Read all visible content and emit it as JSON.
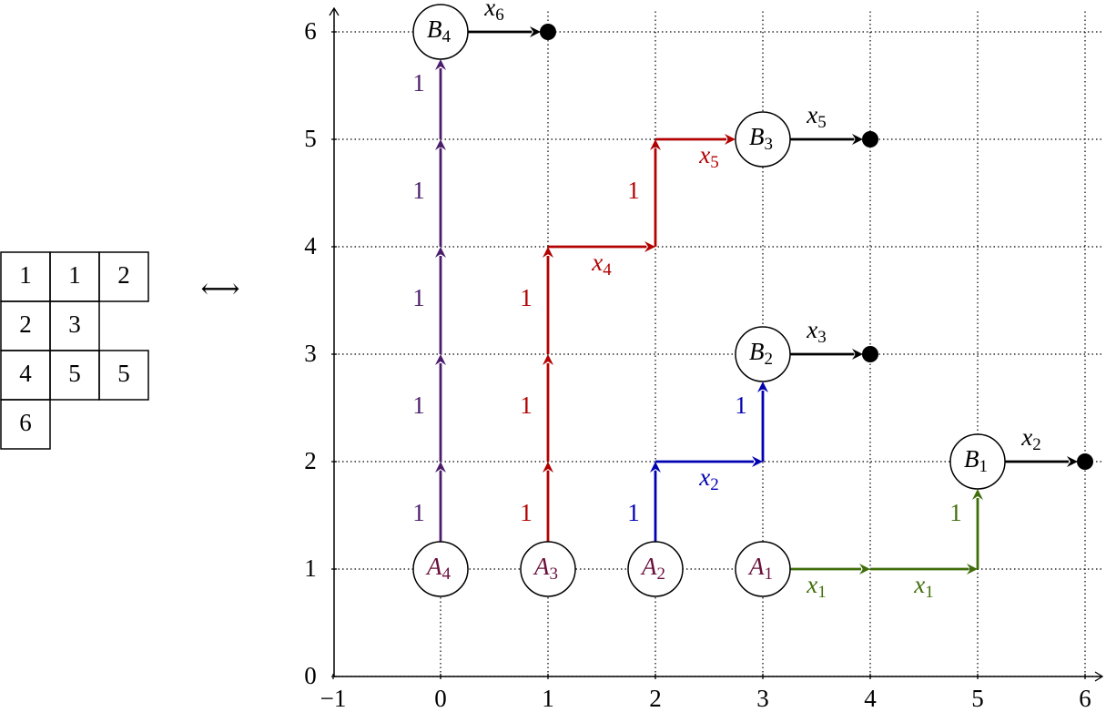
{
  "tableau": {
    "rows": [
      [
        "1",
        "1",
        "2"
      ],
      [
        "2",
        "3"
      ],
      [
        "4",
        "5",
        "5"
      ],
      [
        "6"
      ]
    ]
  },
  "connector": "⟷",
  "axes": {
    "x_ticks": [
      "−1",
      "0",
      "1",
      "2",
      "3",
      "4",
      "5",
      "6"
    ],
    "y_ticks": [
      "0",
      "1",
      "2",
      "3",
      "4",
      "5",
      "6"
    ]
  },
  "nodes": [
    {
      "letter": "A",
      "sub": "1",
      "color": "#6a0f3c"
    },
    {
      "letter": "A",
      "sub": "2",
      "color": "#6a0f3c"
    },
    {
      "letter": "A",
      "sub": "3",
      "color": "#6a0f3c"
    },
    {
      "letter": "A",
      "sub": "4",
      "color": "#6a0f3c"
    },
    {
      "letter": "B",
      "sub": "1",
      "color": "#000000"
    },
    {
      "letter": "B",
      "sub": "2",
      "color": "#000000"
    },
    {
      "letter": "B",
      "sub": "3",
      "color": "#000000"
    },
    {
      "letter": "B",
      "sub": "4",
      "color": "#000000"
    }
  ],
  "paths": [
    {
      "color": "#4b1c6b",
      "edges": [
        {
          "label": "1"
        },
        {
          "label": "1"
        },
        {
          "label": "1"
        },
        {
          "label": "1"
        },
        {
          "label": "1"
        }
      ]
    },
    {
      "color": "#b30000",
      "edges": [
        {
          "label": "1"
        },
        {
          "label": "1"
        },
        {
          "label": "1"
        },
        {
          "var": "x",
          "sub": "4"
        },
        {
          "label": "1"
        },
        {
          "var": "x",
          "sub": "5"
        }
      ]
    },
    {
      "color": "#0000b3",
      "edges": [
        {
          "label": "1"
        },
        {
          "var": "x",
          "sub": "2"
        },
        {
          "label": "1"
        }
      ]
    },
    {
      "color": "#3f6e0a",
      "edges": [
        {
          "var": "x",
          "sub": "1"
        },
        {
          "var": "x",
          "sub": "1"
        },
        {
          "label": "1"
        }
      ]
    },
    {
      "color": "#000000",
      "edges": [
        {
          "var": "x",
          "sub": "6"
        }
      ]
    },
    {
      "color": "#000000",
      "edges": [
        {
          "var": "x",
          "sub": "5"
        }
      ]
    },
    {
      "color": "#000000",
      "edges": [
        {
          "var": "x",
          "sub": "3"
        }
      ]
    },
    {
      "color": "#000000",
      "edges": [
        {
          "var": "x",
          "sub": "2"
        }
      ]
    }
  ]
}
